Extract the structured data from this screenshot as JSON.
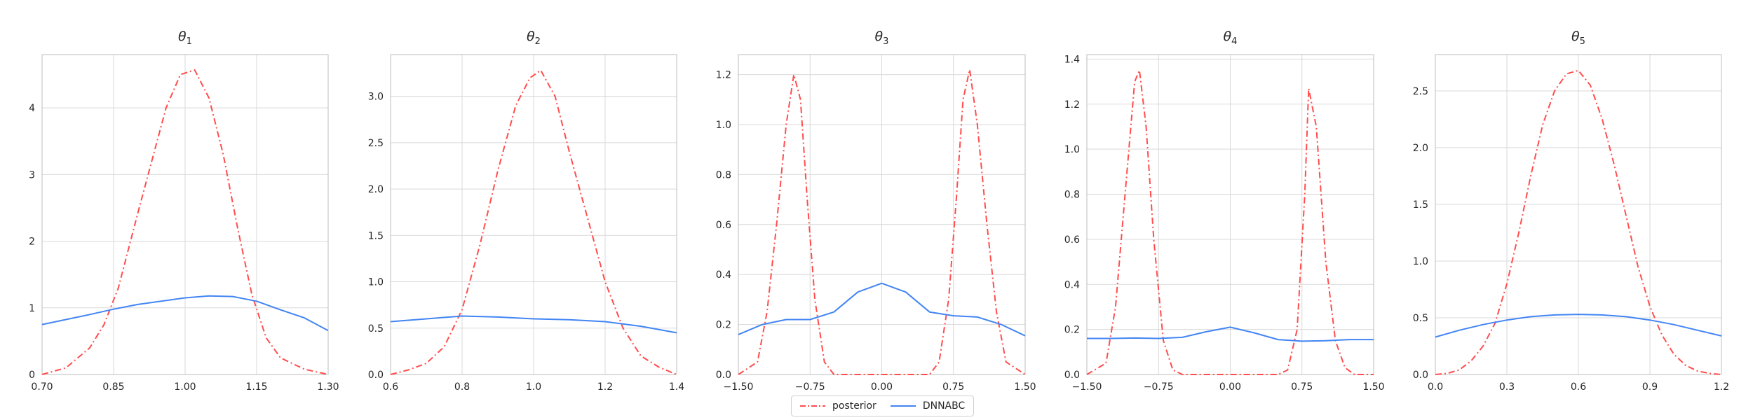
{
  "figure": {
    "legend_position": "bottom-center"
  },
  "colors": {
    "posterior": "#ff4d4d",
    "dnnabc": "#4285f4",
    "grid": "#d9d9d9",
    "axis": "#bdbdbd"
  },
  "legend": {
    "posterior": "posterior",
    "dnnabc": "DNNABC"
  },
  "chart_data": [
    {
      "type": "line",
      "title": "θ",
      "subscript": "1",
      "grid": true,
      "xlim": [
        0.7,
        1.3
      ],
      "ylim": [
        0,
        4.8
      ],
      "xticks": [
        0.7,
        0.85,
        1.0,
        1.15,
        1.3
      ],
      "xtick_labels": [
        "0.70",
        "0.85",
        "1.00",
        "1.15",
        "1.30"
      ],
      "yticks": [
        0,
        1,
        2,
        3,
        4
      ],
      "ytick_labels": [
        "0",
        "1",
        "2",
        "3",
        "4"
      ],
      "series": [
        {
          "name": "posterior",
          "style": "dashdot",
          "x": [
            0.7,
            0.75,
            0.8,
            0.83,
            0.86,
            0.9,
            0.93,
            0.96,
            0.99,
            1.02,
            1.05,
            1.08,
            1.11,
            1.14,
            1.17,
            1.2,
            1.25,
            1.3
          ],
          "y": [
            0.0,
            0.1,
            0.4,
            0.75,
            1.3,
            2.4,
            3.2,
            4.0,
            4.5,
            4.57,
            4.15,
            3.3,
            2.2,
            1.2,
            0.55,
            0.25,
            0.08,
            0.0
          ]
        },
        {
          "name": "DNNABC",
          "style": "solid",
          "x": [
            0.7,
            0.8,
            0.85,
            0.9,
            1.0,
            1.05,
            1.1,
            1.15,
            1.2,
            1.25,
            1.3
          ],
          "y": [
            0.75,
            0.9,
            0.98,
            1.05,
            1.15,
            1.18,
            1.17,
            1.1,
            0.97,
            0.85,
            0.66
          ]
        }
      ]
    },
    {
      "type": "line",
      "title": "θ",
      "subscript": "2",
      "grid": true,
      "xlim": [
        0.6,
        1.4
      ],
      "ylim": [
        0,
        3.45
      ],
      "xticks": [
        0.6,
        0.8,
        1.0,
        1.2,
        1.4
      ],
      "xtick_labels": [
        "0.6",
        "0.8",
        "1.0",
        "1.2",
        "1.4"
      ],
      "yticks": [
        0,
        0.5,
        1.0,
        1.5,
        2.0,
        2.5,
        3.0
      ],
      "ytick_labels": [
        "0.0",
        "0.5",
        "1.0",
        "1.5",
        "2.0",
        "2.5",
        "3.0"
      ],
      "series": [
        {
          "name": "posterior",
          "style": "dashdot",
          "x": [
            0.6,
            0.65,
            0.7,
            0.75,
            0.8,
            0.85,
            0.9,
            0.95,
            0.99,
            1.02,
            1.06,
            1.1,
            1.15,
            1.2,
            1.25,
            1.3,
            1.35,
            1.4
          ],
          "y": [
            0.0,
            0.05,
            0.12,
            0.3,
            0.7,
            1.4,
            2.2,
            2.9,
            3.2,
            3.28,
            3.0,
            2.4,
            1.7,
            1.0,
            0.5,
            0.2,
            0.08,
            0.0
          ]
        },
        {
          "name": "DNNABC",
          "style": "solid",
          "x": [
            0.6,
            0.7,
            0.8,
            0.9,
            1.0,
            1.1,
            1.2,
            1.3,
            1.4
          ],
          "y": [
            0.57,
            0.6,
            0.63,
            0.62,
            0.6,
            0.59,
            0.57,
            0.52,
            0.45
          ]
        }
      ]
    },
    {
      "type": "line",
      "title": "θ",
      "subscript": "3",
      "grid": true,
      "xlim": [
        -1.5,
        1.5
      ],
      "ylim": [
        0,
        1.28
      ],
      "xticks": [
        -1.5,
        -0.75,
        0.0,
        0.75,
        1.5
      ],
      "xtick_labels": [
        "−1.50",
        "−0.75",
        "0.00",
        "0.75",
        "1.50"
      ],
      "yticks": [
        0,
        0.2,
        0.4,
        0.6,
        0.8,
        1.0,
        1.2
      ],
      "ytick_labels": [
        "0.0",
        "0.2",
        "0.4",
        "0.6",
        "0.8",
        "1.0",
        "1.2"
      ],
      "series": [
        {
          "name": "posterior",
          "style": "dashdot",
          "x": [
            -1.5,
            -1.3,
            -1.2,
            -1.1,
            -1.0,
            -0.92,
            -0.85,
            -0.78,
            -0.7,
            -0.6,
            -0.5,
            0.0,
            0.5,
            0.6,
            0.7,
            0.78,
            0.85,
            0.92,
            1.0,
            1.1,
            1.2,
            1.3,
            1.5
          ],
          "y": [
            0.0,
            0.05,
            0.25,
            0.6,
            1.0,
            1.2,
            1.1,
            0.7,
            0.3,
            0.05,
            0.0,
            0.0,
            0.0,
            0.05,
            0.3,
            0.7,
            1.1,
            1.22,
            1.0,
            0.6,
            0.25,
            0.05,
            0.0
          ]
        },
        {
          "name": "DNNABC",
          "style": "solid",
          "x": [
            -1.5,
            -1.25,
            -1.0,
            -0.75,
            -0.5,
            -0.25,
            0.0,
            0.25,
            0.5,
            0.75,
            1.0,
            1.25,
            1.5
          ],
          "y": [
            0.16,
            0.2,
            0.22,
            0.22,
            0.25,
            0.33,
            0.365,
            0.33,
            0.25,
            0.235,
            0.23,
            0.2,
            0.155
          ]
        }
      ]
    },
    {
      "type": "line",
      "title": "θ",
      "subscript": "4",
      "grid": true,
      "xlim": [
        -1.5,
        1.5
      ],
      "ylim": [
        0,
        1.42
      ],
      "xticks": [
        -1.5,
        -0.75,
        0.0,
        0.75,
        1.5
      ],
      "xtick_labels": [
        "−1.50",
        "−0.75",
        "0.00",
        "0.75",
        "1.50"
      ],
      "yticks": [
        0,
        0.2,
        0.4,
        0.6,
        0.8,
        1.0,
        1.2,
        1.4
      ],
      "ytick_labels": [
        "0.0",
        "0.2",
        "0.4",
        "0.6",
        "0.8",
        "1.0",
        "1.2",
        "1.4"
      ],
      "series": [
        {
          "name": "posterior",
          "style": "dashdot",
          "x": [
            -1.5,
            -1.3,
            -1.2,
            -1.1,
            -1.0,
            -0.95,
            -0.88,
            -0.8,
            -0.7,
            -0.6,
            -0.5,
            0.0,
            0.5,
            0.6,
            0.7,
            0.78,
            0.82,
            0.9,
            1.0,
            1.1,
            1.2,
            1.3,
            1.5
          ],
          "y": [
            0.0,
            0.05,
            0.3,
            0.8,
            1.3,
            1.35,
            1.1,
            0.6,
            0.15,
            0.02,
            0.0,
            0.0,
            0.0,
            0.02,
            0.2,
            0.8,
            1.27,
            1.1,
            0.5,
            0.15,
            0.03,
            0.0,
            0.0
          ]
        },
        {
          "name": "DNNABC",
          "style": "solid",
          "x": [
            -1.5,
            -1.25,
            -1.0,
            -0.75,
            -0.5,
            -0.25,
            0.0,
            0.25,
            0.5,
            0.75,
            1.0,
            1.25,
            1.5
          ],
          "y": [
            0.16,
            0.16,
            0.162,
            0.16,
            0.165,
            0.19,
            0.21,
            0.185,
            0.155,
            0.148,
            0.15,
            0.155,
            0.155
          ]
        }
      ]
    },
    {
      "type": "line",
      "title": "θ",
      "subscript": "5",
      "grid": true,
      "xlim": [
        0.0,
        1.2
      ],
      "ylim": [
        0,
        2.82
      ],
      "xticks": [
        0.0,
        0.3,
        0.6,
        0.9,
        1.2
      ],
      "xtick_labels": [
        "0.0",
        "0.3",
        "0.6",
        "0.9",
        "1.2"
      ],
      "yticks": [
        0,
        0.5,
        1.0,
        1.5,
        2.0,
        2.5
      ],
      "ytick_labels": [
        "0.0",
        "0.5",
        "1.0",
        "1.5",
        "2.0",
        "2.5"
      ],
      "series": [
        {
          "name": "posterior",
          "style": "dashdot",
          "x": [
            0.0,
            0.05,
            0.1,
            0.15,
            0.2,
            0.25,
            0.3,
            0.35,
            0.4,
            0.45,
            0.5,
            0.55,
            0.6,
            0.65,
            0.7,
            0.75,
            0.8,
            0.85,
            0.9,
            0.95,
            1.0,
            1.05,
            1.1,
            1.15,
            1.2
          ],
          "y": [
            0.0,
            0.01,
            0.04,
            0.12,
            0.25,
            0.45,
            0.8,
            1.25,
            1.75,
            2.2,
            2.5,
            2.65,
            2.68,
            2.55,
            2.25,
            1.85,
            1.4,
            0.95,
            0.6,
            0.35,
            0.18,
            0.08,
            0.03,
            0.01,
            0.0
          ]
        },
        {
          "name": "DNNABC",
          "style": "solid",
          "x": [
            0.0,
            0.1,
            0.2,
            0.3,
            0.4,
            0.5,
            0.6,
            0.7,
            0.8,
            0.9,
            1.0,
            1.1,
            1.2
          ],
          "y": [
            0.33,
            0.39,
            0.44,
            0.48,
            0.51,
            0.525,
            0.53,
            0.525,
            0.51,
            0.48,
            0.44,
            0.39,
            0.34
          ]
        }
      ]
    }
  ]
}
